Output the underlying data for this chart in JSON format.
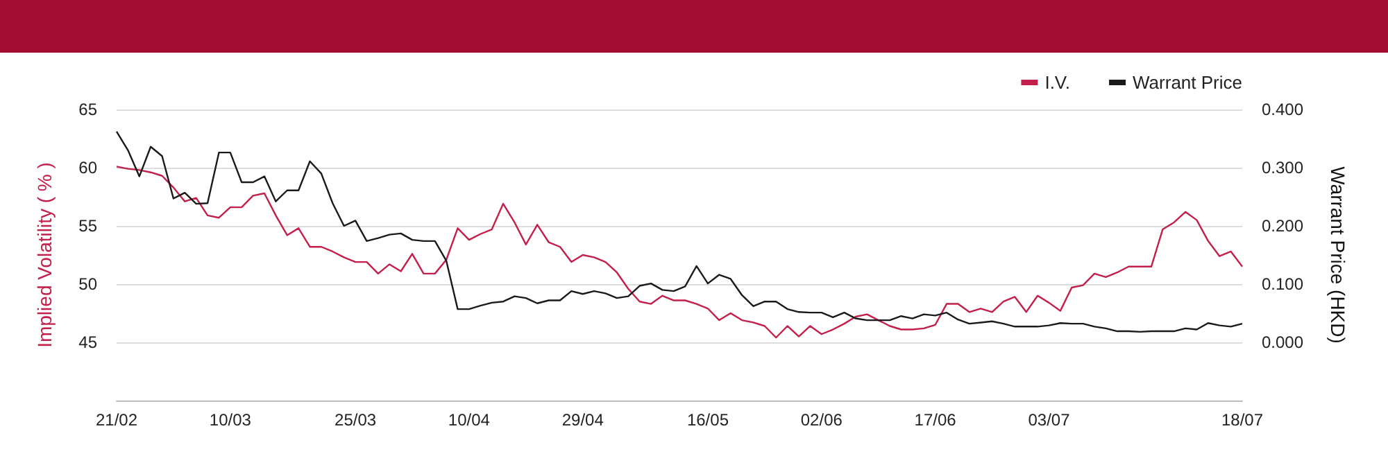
{
  "chart_data": {
    "type": "line",
    "categories": [
      "21/02",
      null,
      null,
      null,
      null,
      null,
      null,
      null,
      null,
      null,
      "10/03",
      null,
      null,
      null,
      null,
      null,
      null,
      null,
      null,
      null,
      null,
      "25/03",
      null,
      null,
      null,
      null,
      null,
      null,
      null,
      null,
      null,
      "10/04",
      null,
      null,
      null,
      null,
      null,
      null,
      null,
      null,
      null,
      "29/04",
      null,
      null,
      null,
      null,
      null,
      null,
      null,
      null,
      null,
      null,
      "16/05",
      null,
      null,
      null,
      null,
      null,
      null,
      null,
      null,
      null,
      "02/06",
      null,
      null,
      null,
      null,
      null,
      null,
      null,
      null,
      null,
      "17/06",
      null,
      null,
      null,
      null,
      null,
      null,
      null,
      null,
      null,
      "03/07",
      null,
      null,
      null,
      null,
      null,
      null,
      null,
      null,
      null,
      null,
      null,
      null,
      null,
      null,
      null,
      null,
      "18/07"
    ],
    "series": [
      {
        "name": "I.V.",
        "color": "#c41e4a",
        "values": [
          60.1,
          59.9,
          59.8,
          59.6,
          59.3,
          58.3,
          57.1,
          57.4,
          55.9,
          55.7,
          56.6,
          56.6,
          57.6,
          57.8,
          55.9,
          54.2,
          54.8,
          53.2,
          53.2,
          52.8,
          52.3,
          51.9,
          51.9,
          50.9,
          51.7,
          51.1,
          52.6,
          50.9,
          50.9,
          52.1,
          54.8,
          53.8,
          54.3,
          54.7,
          56.9,
          55.3,
          53.4,
          55.1,
          53.6,
          53.2,
          51.9,
          52.5,
          52.3,
          51.9,
          51.0,
          49.6,
          48.5,
          48.3,
          49.0,
          48.6,
          48.6,
          48.3,
          47.9,
          46.9,
          47.5,
          46.9,
          46.7,
          46.4,
          45.4,
          46.4,
          45.5,
          46.4,
          45.7,
          46.1,
          46.6,
          47.2,
          47.4,
          46.9,
          46.4,
          46.1,
          46.1,
          46.2,
          46.5,
          48.3,
          48.3,
          47.6,
          47.9,
          47.6,
          48.5,
          48.9,
          47.6,
          49.0,
          48.4,
          47.7,
          49.7,
          49.9,
          50.9,
          50.6,
          51.0,
          51.5,
          51.5,
          51.5,
          54.7,
          55.3,
          56.2,
          55.5,
          53.7,
          52.4,
          52.8,
          51.5
        ]
      },
      {
        "name": "Warrant Price",
        "color": "#1a1a1a",
        "axis": "y2",
        "values": [
          0.362,
          0.33,
          0.285,
          0.336,
          0.32,
          0.247,
          0.257,
          0.238,
          0.239,
          0.326,
          0.326,
          0.275,
          0.275,
          0.285,
          0.242,
          0.261,
          0.261,
          0.311,
          0.29,
          0.239,
          0.2,
          0.209,
          0.174,
          0.179,
          0.185,
          0.187,
          0.176,
          0.174,
          0.174,
          0.14,
          0.057,
          0.057,
          0.063,
          0.068,
          0.07,
          0.079,
          0.076,
          0.067,
          0.072,
          0.072,
          0.088,
          0.083,
          0.088,
          0.084,
          0.076,
          0.079,
          0.097,
          0.101,
          0.09,
          0.088,
          0.096,
          0.131,
          0.101,
          0.116,
          0.109,
          0.081,
          0.062,
          0.07,
          0.07,
          0.057,
          0.052,
          0.051,
          0.051,
          0.043,
          0.051,
          0.041,
          0.038,
          0.038,
          0.038,
          0.045,
          0.041,
          0.048,
          0.046,
          0.051,
          0.039,
          0.032,
          0.034,
          0.036,
          0.032,
          0.027,
          0.027,
          0.027,
          0.029,
          0.033,
          0.032,
          0.032,
          0.027,
          0.024,
          0.019,
          0.019,
          0.018,
          0.019,
          0.019,
          0.019,
          0.024,
          0.022,
          0.033,
          0.029,
          0.027,
          0.032
        ]
      }
    ],
    "ylabel": "Implied Volatility ( % )",
    "y2label": "Warrant Price (HKD)",
    "ylim": [
      40,
      65
    ],
    "yticks": [
      45,
      50,
      55,
      60,
      65
    ],
    "y2lim": [
      -0.1,
      0.4
    ],
    "y2ticks": [
      {
        "value": 0,
        "label": "0.000"
      },
      {
        "value": 0.1,
        "label": "0.100"
      },
      {
        "value": 0.2,
        "label": "0.200"
      },
      {
        "value": 0.3,
        "label": "0.300"
      },
      {
        "value": 0.4,
        "label": "0.400"
      }
    ],
    "grid": "y",
    "legend": "top right",
    "marker": "none",
    "line_style": "solid"
  }
}
